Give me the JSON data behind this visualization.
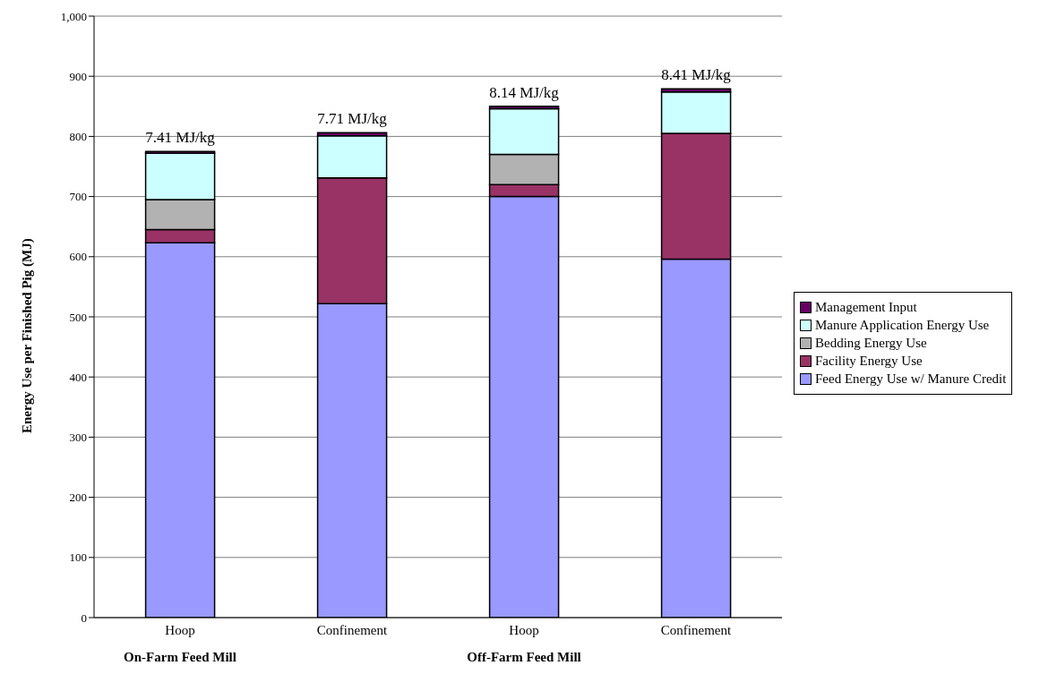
{
  "chart_data": {
    "type": "bar",
    "stacked": true,
    "ylabel": "Energy Use per Finished Pig (MJ)",
    "categories": [
      "Hoop",
      "Confinement",
      "Hoop",
      "Confinement"
    ],
    "annotations": [
      "7.41 MJ/kg",
      "7.71 MJ/kg",
      "8.14 MJ/kg",
      "8.41 MJ/kg",
      "On-Farm Feed Mill",
      "Off-Farm Feed Mill"
    ],
    "series": [
      {
        "name": "Feed Energy Use w/ Manure Credit",
        "color": "#9999ff",
        "values": [
          623,
          522,
          700,
          596
        ]
      },
      {
        "name": "Facility Energy Use",
        "color": "#993366",
        "values": [
          22,
          209,
          20,
          209
        ]
      },
      {
        "name": "Bedding Energy Use",
        "color": "#b2b2b2",
        "values": [
          50,
          null,
          50,
          null
        ]
      },
      {
        "name": "Manure Application Energy Use",
        "color": "#ccffff",
        "values": [
          77,
          70,
          76,
          69
        ]
      },
      {
        "name": "Management Input",
        "color": "#660066",
        "values": [
          3,
          5,
          4,
          5
        ]
      }
    ],
    "ylim": [
      0,
      1000
    ],
    "yticks": [
      0,
      100,
      200,
      300,
      400,
      500,
      600,
      700,
      800,
      900,
      {
        "value": 1000,
        "label": "1,000"
      }
    ],
    "grid": "y",
    "legend": "right"
  }
}
